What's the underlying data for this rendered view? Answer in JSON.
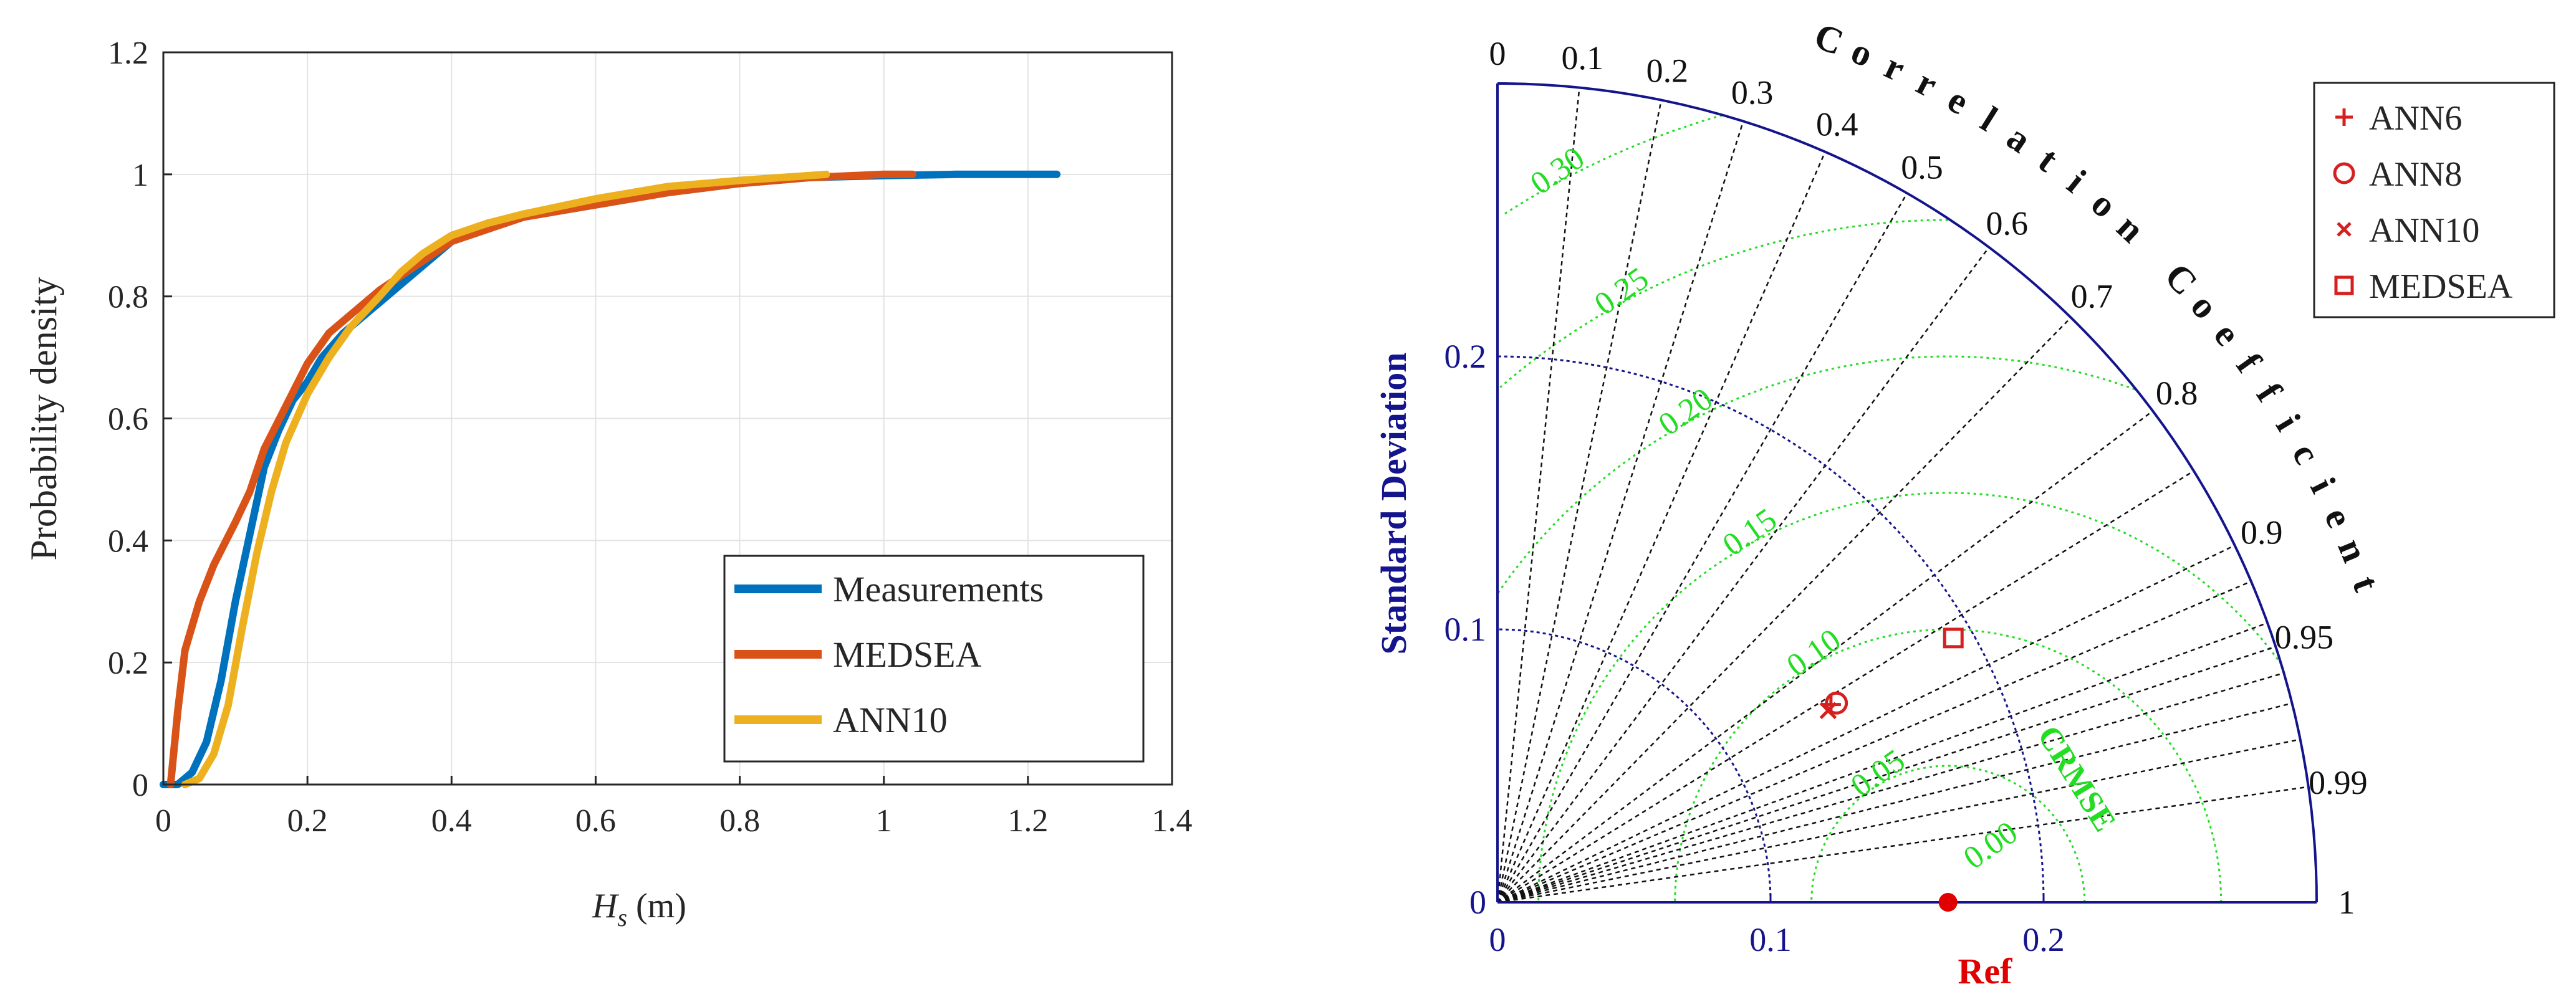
{
  "chart_data": [
    {
      "type": "line",
      "title": "",
      "xlabel_main": "H",
      "xlabel_sub": "s",
      "xlabel_unit": "(m)",
      "ylabel": "Probability density",
      "xlim": [
        0,
        1.4
      ],
      "ylim": [
        0,
        1.2
      ],
      "xticks": [
        0,
        0.2,
        0.4,
        0.6,
        0.8,
        1,
        1.2,
        1.4
      ],
      "xtick_labels": [
        "0",
        "0.2",
        "0.4",
        "0.6",
        "0.8",
        "1",
        "1.2",
        "1.4"
      ],
      "yticks": [
        0,
        0.2,
        0.4,
        0.6,
        0.8,
        1,
        1.2
      ],
      "ytick_labels": [
        "0",
        "0.2",
        "0.4",
        "0.6",
        "0.8",
        "1",
        "1.2"
      ],
      "grid": true,
      "legend_position": "bottom-right",
      "series": [
        {
          "name": "Measurements",
          "color": "#0072BD",
          "x": [
            0,
            0.02,
            0.04,
            0.06,
            0.08,
            0.1,
            0.12,
            0.14,
            0.16,
            0.18,
            0.2,
            0.22,
            0.25,
            0.28,
            0.3,
            0.33,
            0.36,
            0.4,
            0.45,
            0.5,
            0.6,
            0.7,
            0.8,
            0.9,
            1.0,
            1.1,
            1.24
          ],
          "y": [
            0,
            0,
            0.02,
            0.07,
            0.17,
            0.3,
            0.41,
            0.52,
            0.58,
            0.63,
            0.66,
            0.7,
            0.74,
            0.77,
            0.79,
            0.82,
            0.85,
            0.89,
            0.92,
            0.93,
            0.955,
            0.975,
            0.99,
            0.995,
            0.998,
            1.0,
            1.0
          ]
        },
        {
          "name": "MEDSEA",
          "color": "#D95319",
          "x": [
            0.01,
            0.02,
            0.03,
            0.05,
            0.07,
            0.1,
            0.12,
            0.14,
            0.17,
            0.2,
            0.23,
            0.27,
            0.3,
            0.35,
            0.4,
            0.45,
            0.5,
            0.6,
            0.7,
            0.8,
            0.9,
            1.0,
            1.04
          ],
          "y": [
            0,
            0.12,
            0.22,
            0.3,
            0.36,
            0.43,
            0.48,
            0.55,
            0.62,
            0.69,
            0.74,
            0.78,
            0.81,
            0.85,
            0.89,
            0.91,
            0.93,
            0.95,
            0.97,
            0.985,
            0.995,
            1.0,
            1.0
          ]
        },
        {
          "name": "ANN10",
          "color": "#EDB120",
          "x": [
            0.03,
            0.05,
            0.07,
            0.09,
            0.11,
            0.13,
            0.15,
            0.17,
            0.2,
            0.23,
            0.26,
            0.3,
            0.33,
            0.36,
            0.4,
            0.45,
            0.5,
            0.6,
            0.7,
            0.8,
            0.92
          ],
          "y": [
            0,
            0.01,
            0.05,
            0.13,
            0.26,
            0.38,
            0.48,
            0.56,
            0.64,
            0.7,
            0.75,
            0.8,
            0.84,
            0.87,
            0.9,
            0.92,
            0.935,
            0.96,
            0.98,
            0.99,
            1.0
          ]
        }
      ]
    },
    {
      "type": "scatter",
      "subtype": "taylor-diagram",
      "std_axis_label": "Standard Deviation",
      "corr_axis_label": "Correlation Coefficient",
      "rmse_label": "CRMSE",
      "ref_label": "Ref",
      "ref_std": 0.165,
      "max_std": 0.3,
      "std_ticks": [
        0,
        0.1,
        0.2
      ],
      "std_tick_labels": [
        "0",
        "0.1",
        "0.2"
      ],
      "std_arc_values": [
        0.1,
        0.2
      ],
      "corr_ticks": [
        0,
        0.1,
        0.2,
        0.3,
        0.4,
        0.5,
        0.6,
        0.7,
        0.8,
        0.9,
        0.95,
        0.99,
        1
      ],
      "corr_tick_labels": [
        "0",
        "0.1",
        "0.2",
        "0.3",
        "0.4",
        "0.5",
        "0.6",
        "0.7",
        "0.8",
        "0.9",
        "0.95",
        "0.99",
        "1"
      ],
      "rmse_levels": [
        0.05,
        0.1,
        0.15,
        0.2,
        0.25,
        0.3
      ],
      "rmse_tick_labels": [
        "0.00",
        "0.05",
        "0.10",
        "0.15",
        "0.20",
        "0.25",
        "0.30"
      ],
      "legend_position": "top-right",
      "points": [
        {
          "name": "ANN6",
          "marker": "plus",
          "color": "#D62020",
          "std": 0.142,
          "corr": 0.86
        },
        {
          "name": "ANN8",
          "marker": "circle",
          "color": "#D62020",
          "std": 0.144,
          "corr": 0.862
        },
        {
          "name": "ANN10",
          "marker": "x",
          "color": "#D62020",
          "std": 0.14,
          "corr": 0.865
        },
        {
          "name": "MEDSEA",
          "marker": "square",
          "color": "#D62020",
          "std": 0.193,
          "corr": 0.865
        }
      ]
    }
  ],
  "colors": {
    "axis_blue": "#14148C",
    "rmse_green": "#22DD22",
    "ref_red": "#E00000",
    "grid": "#E3E3E3"
  }
}
